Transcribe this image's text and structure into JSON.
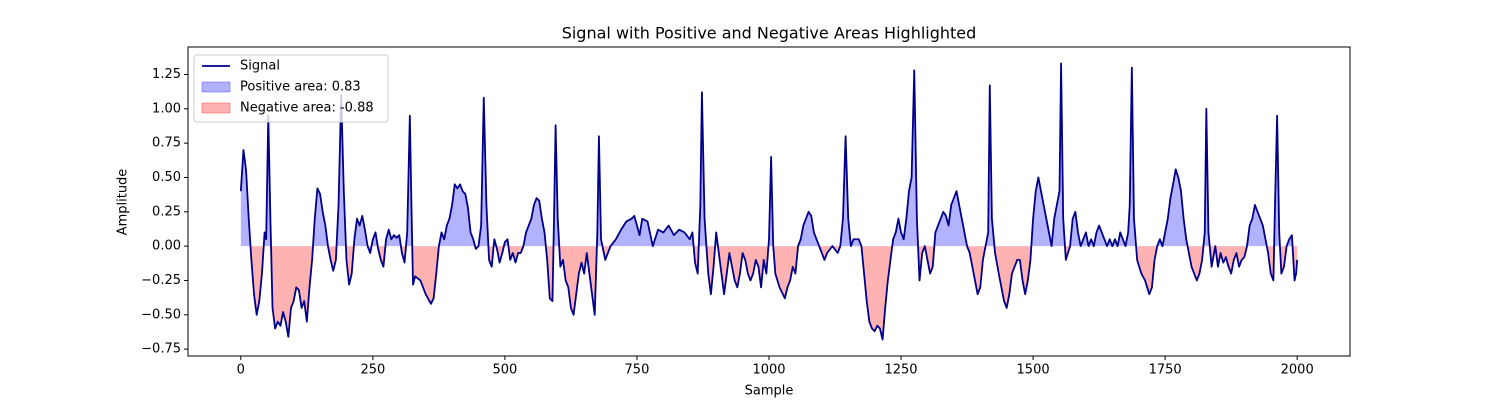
{
  "chart_data": {
    "type": "area-line",
    "title": "Signal with Positive and Negative Areas Highlighted",
    "x_label": "Sample",
    "y_label": "Amplitude",
    "x": [
      0,
      5,
      10,
      15,
      20,
      25,
      30,
      35,
      40,
      45,
      48,
      52,
      56,
      60,
      65,
      70,
      75,
      80,
      85,
      90,
      95,
      100,
      105,
      110,
      115,
      120,
      125,
      130,
      135,
      140,
      145,
      150,
      155,
      160,
      165,
      170,
      175,
      180,
      185,
      190,
      195,
      200,
      205,
      210,
      215,
      220,
      225,
      230,
      235,
      240,
      245,
      250,
      255,
      260,
      265,
      270,
      275,
      280,
      285,
      290,
      295,
      300,
      305,
      310,
      315,
      320,
      323,
      326,
      330,
      340,
      350,
      360,
      365,
      370,
      375,
      380,
      385,
      390,
      395,
      400,
      405,
      410,
      415,
      420,
      425,
      430,
      435,
      440,
      445,
      450,
      455,
      460,
      465,
      470,
      475,
      480,
      485,
      490,
      495,
      500,
      505,
      510,
      515,
      520,
      525,
      530,
      535,
      540,
      545,
      550,
      555,
      560,
      565,
      570,
      575,
      580,
      585,
      590,
      593,
      596,
      600,
      605,
      610,
      615,
      620,
      625,
      630,
      635,
      640,
      645,
      650,
      655,
      660,
      665,
      670,
      675,
      678,
      682,
      690,
      700,
      710,
      720,
      730,
      740,
      745,
      750,
      755,
      760,
      770,
      780,
      790,
      800,
      810,
      820,
      830,
      840,
      850,
      855,
      860,
      865,
      870,
      873,
      878,
      885,
      890,
      895,
      900,
      905,
      910,
      915,
      920,
      925,
      930,
      935,
      940,
      945,
      950,
      955,
      960,
      965,
      970,
      975,
      980,
      985,
      990,
      995,
      1000,
      1004,
      1008,
      1012,
      1020,
      1030,
      1035,
      1040,
      1045,
      1050,
      1055,
      1060,
      1065,
      1070,
      1075,
      1080,
      1085,
      1090,
      1095,
      1100,
      1105,
      1110,
      1120,
      1130,
      1135,
      1140,
      1145,
      1150,
      1155,
      1160,
      1170,
      1175,
      1180,
      1185,
      1190,
      1195,
      1200,
      1205,
      1210,
      1215,
      1220,
      1225,
      1230,
      1235,
      1240,
      1245,
      1250,
      1255,
      1260,
      1265,
      1270,
      1275,
      1280,
      1285,
      1290,
      1295,
      1300,
      1305,
      1310,
      1315,
      1320,
      1325,
      1330,
      1335,
      1340,
      1345,
      1350,
      1355,
      1360,
      1365,
      1370,
      1375,
      1380,
      1385,
      1390,
      1395,
      1400,
      1405,
      1410,
      1415,
      1418,
      1422,
      1428,
      1435,
      1440,
      1445,
      1450,
      1455,
      1460,
      1465,
      1470,
      1475,
      1480,
      1485,
      1490,
      1495,
      1500,
      1505,
      1510,
      1515,
      1520,
      1525,
      1530,
      1535,
      1540,
      1545,
      1550,
      1553,
      1557,
      1562,
      1570,
      1575,
      1580,
      1585,
      1590,
      1595,
      1600,
      1605,
      1610,
      1615,
      1620,
      1625,
      1630,
      1635,
      1640,
      1645,
      1650,
      1655,
      1660,
      1665,
      1670,
      1675,
      1680,
      1683,
      1687,
      1691,
      1697,
      1705,
      1712,
      1720,
      1725,
      1730,
      1735,
      1740,
      1745,
      1750,
      1755,
      1760,
      1765,
      1770,
      1775,
      1780,
      1785,
      1790,
      1795,
      1800,
      1805,
      1810,
      1815,
      1820,
      1825,
      1828,
      1832,
      1838,
      1845,
      1850,
      1855,
      1860,
      1865,
      1870,
      1875,
      1880,
      1885,
      1890,
      1895,
      1900,
      1905,
      1910,
      1915,
      1920,
      1925,
      1930,
      1935,
      1940,
      1945,
      1950,
      1955,
      1958,
      1962,
      1966,
      1970,
      1975,
      1980,
      1985,
      1990,
      1995,
      1998,
      2000
    ],
    "series": [
      {
        "name": "Signal",
        "color": "#00008b",
        "values": [
          0.4,
          0.7,
          0.55,
          0.2,
          -0.1,
          -0.35,
          -0.5,
          -0.4,
          -0.2,
          0.1,
          0.05,
          0.95,
          0.2,
          -0.45,
          -0.6,
          -0.55,
          -0.58,
          -0.48,
          -0.55,
          -0.66,
          -0.45,
          -0.4,
          -0.3,
          -0.32,
          -0.45,
          -0.4,
          -0.55,
          -0.3,
          -0.1,
          0.2,
          0.42,
          0.38,
          0.25,
          0.15,
          0.0,
          -0.1,
          -0.18,
          -0.1,
          0.3,
          1.1,
          0.4,
          -0.1,
          -0.28,
          -0.2,
          0.05,
          0.2,
          0.15,
          0.22,
          0.12,
          0.0,
          -0.05,
          0.05,
          0.1,
          -0.02,
          -0.1,
          -0.15,
          0.05,
          0.12,
          0.05,
          0.08,
          0.06,
          0.08,
          -0.05,
          -0.12,
          0.1,
          0.95,
          0.3,
          -0.28,
          -0.22,
          -0.25,
          -0.35,
          -0.42,
          -0.38,
          -0.2,
          0.0,
          0.1,
          0.05,
          0.15,
          0.2,
          0.3,
          0.45,
          0.42,
          0.45,
          0.4,
          0.38,
          0.28,
          0.1,
          0.05,
          -0.02,
          0.0,
          0.15,
          1.08,
          0.3,
          -0.1,
          -0.15,
          0.05,
          -0.02,
          -0.12,
          -0.05,
          0.03,
          0.05,
          -0.1,
          -0.05,
          -0.12,
          -0.05,
          -0.05,
          0.0,
          0.1,
          0.15,
          0.2,
          0.3,
          0.35,
          0.33,
          0.2,
          0.1,
          -0.1,
          -0.38,
          -0.4,
          0.2,
          0.88,
          0.2,
          -0.15,
          -0.1,
          -0.25,
          -0.3,
          -0.45,
          -0.5,
          -0.35,
          -0.2,
          -0.12,
          -0.2,
          -0.05,
          -0.2,
          -0.35,
          -0.5,
          0.1,
          0.8,
          0.05,
          -0.1,
          0.0,
          0.05,
          0.12,
          0.18,
          0.2,
          0.22,
          0.15,
          0.08,
          0.2,
          0.18,
          0.0,
          0.12,
          0.1,
          0.15,
          0.08,
          0.12,
          0.1,
          0.05,
          0.1,
          -0.12,
          -0.2,
          0.3,
          1.12,
          0.2,
          -0.2,
          -0.35,
          -0.15,
          0.1,
          -0.05,
          -0.2,
          -0.35,
          -0.2,
          -0.05,
          -0.15,
          -0.25,
          -0.3,
          -0.2,
          -0.05,
          -0.1,
          -0.2,
          -0.25,
          -0.2,
          -0.1,
          -0.15,
          -0.3,
          -0.1,
          -0.2,
          0.05,
          0.65,
          0.0,
          -0.2,
          -0.3,
          -0.38,
          -0.3,
          -0.25,
          -0.15,
          -0.2,
          0.0,
          0.05,
          0.15,
          0.2,
          0.25,
          0.22,
          0.1,
          0.05,
          0.0,
          -0.05,
          -0.1,
          -0.05,
          0.0,
          -0.05,
          0.0,
          0.2,
          0.8,
          0.2,
          0.0,
          0.05,
          0.05,
          0.0,
          -0.2,
          -0.4,
          -0.55,
          -0.6,
          -0.62,
          -0.58,
          -0.6,
          -0.68,
          -0.45,
          -0.25,
          -0.1,
          0.05,
          0.1,
          0.2,
          0.1,
          0.05,
          0.2,
          0.4,
          0.5,
          1.28,
          0.2,
          -0.25,
          -0.05,
          0.0,
          -0.1,
          -0.2,
          -0.15,
          0.1,
          0.15,
          0.2,
          0.25,
          0.22,
          0.15,
          0.3,
          0.35,
          0.4,
          0.3,
          0.2,
          0.1,
          0.0,
          -0.05,
          -0.15,
          -0.25,
          -0.35,
          -0.3,
          -0.1,
          0.0,
          0.1,
          1.17,
          0.2,
          -0.05,
          -0.2,
          -0.3,
          -0.4,
          -0.45,
          -0.35,
          -0.2,
          -0.15,
          -0.1,
          -0.1,
          -0.25,
          -0.35,
          -0.25,
          -0.1,
          0.2,
          0.4,
          0.5,
          0.4,
          0.3,
          0.2,
          0.1,
          0.0,
          0.2,
          0.3,
          0.4,
          1.33,
          0.2,
          -0.1,
          0.0,
          0.2,
          0.25,
          0.1,
          0.0,
          0.05,
          0.1,
          0.0,
          0.05,
          0.0,
          0.1,
          0.15,
          0.1,
          0.05,
          0.0,
          0.05,
          0.0,
          0.05,
          0.0,
          0.1,
          0.05,
          0.0,
          0.1,
          0.3,
          1.3,
          0.2,
          -0.1,
          -0.2,
          -0.25,
          -0.35,
          -0.3,
          -0.1,
          0.0,
          0.05,
          0.0,
          0.1,
          0.2,
          0.35,
          0.45,
          0.56,
          0.5,
          0.4,
          0.2,
          0.05,
          -0.05,
          -0.15,
          -0.2,
          -0.25,
          -0.2,
          -0.1,
          0.1,
          1.0,
          0.1,
          -0.15,
          0.0,
          -0.15,
          -0.05,
          -0.12,
          -0.08,
          -0.15,
          -0.2,
          -0.1,
          -0.05,
          -0.15,
          -0.1,
          -0.08,
          0.0,
          0.15,
          0.2,
          0.3,
          0.25,
          0.2,
          0.15,
          0.05,
          -0.05,
          -0.2,
          -0.25,
          0.3,
          0.95,
          0.1,
          -0.2,
          -0.15,
          0.0,
          0.05,
          0.08,
          -0.25,
          -0.2,
          -0.1
        ]
      }
    ],
    "fills": [
      {
        "name": "Positive area: 0.83",
        "color": "#0000ff",
        "side": "positive"
      },
      {
        "name": "Negative area: -0.88",
        "color": "#ff0000",
        "side": "negative"
      }
    ],
    "xlim": [
      -100,
      2100
    ],
    "ylim": [
      -0.8,
      1.45
    ],
    "xticks": [
      0,
      250,
      500,
      750,
      1000,
      1250,
      1500,
      1750,
      2000
    ],
    "yticks": [
      {
        "value": -0.75,
        "label": "−0.75"
      },
      {
        "value": -0.5,
        "label": "−0.50"
      },
      {
        "value": -0.25,
        "label": "−0.25"
      },
      {
        "value": 0,
        "label": "0.00"
      },
      {
        "value": 0.25,
        "label": "0.25"
      },
      {
        "value": 0.5,
        "label": "0.50"
      },
      {
        "value": 0.75,
        "label": "0.75"
      },
      {
        "value": 1,
        "label": "1.00"
      },
      {
        "value": 1.25,
        "label": "1.25"
      }
    ],
    "legend": "upper left"
  }
}
